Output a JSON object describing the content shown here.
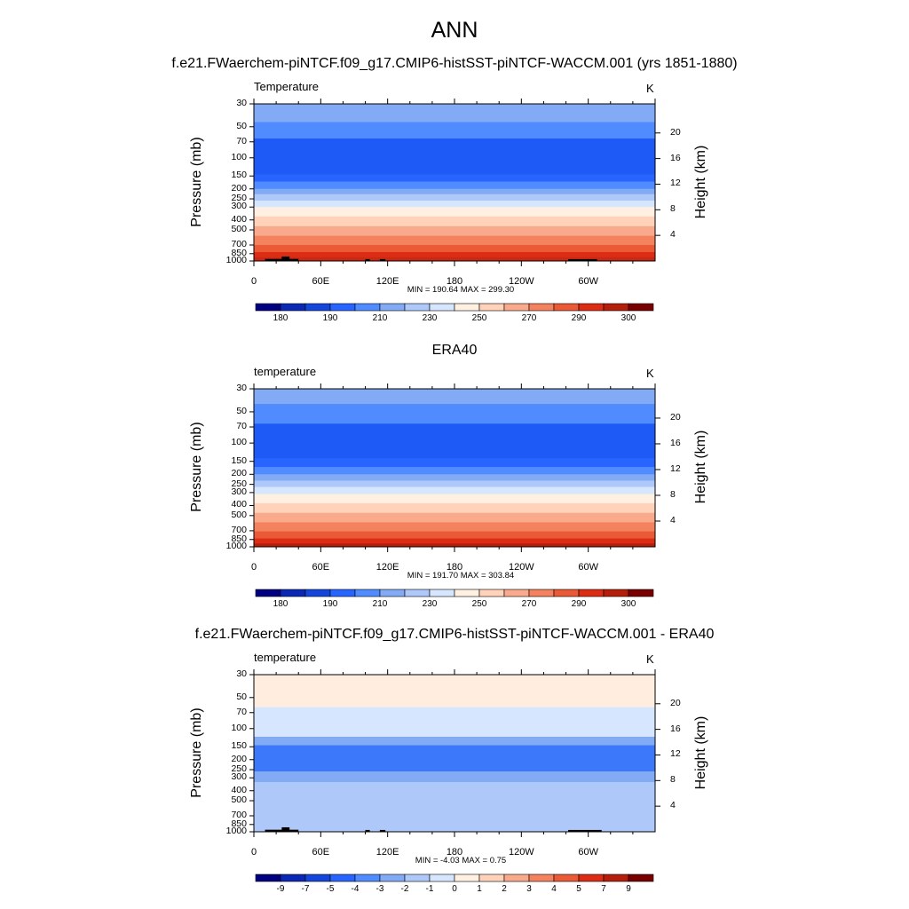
{
  "main_title": "ANN",
  "chart_data": [
    {
      "type": "heatmap",
      "title": "f.e21.FWaerchem-piNTCF.f09_g17.CMIP6-histSST-piNTCF-WACCM.001 (yrs 1851-1880)",
      "variable_label": "Temperature",
      "units": "K",
      "ylabel": "Pressure (mb)",
      "y2label": "Height (km)",
      "x_ticks": [
        "0",
        "60E",
        "120E",
        "180",
        "120W",
        "60W"
      ],
      "p_ticks": [
        "30",
        "50",
        "70",
        "100",
        "150",
        "200",
        "250",
        "300",
        "400",
        "500",
        "700",
        "850",
        "1000"
      ],
      "h_ticks": [
        "20",
        "16",
        "12",
        "8",
        "4"
      ],
      "minmax_text": "MIN = 190.64  MAX = 299.30",
      "min": 190.64,
      "max": 299.3,
      "colorbar_ticks": [
        "180",
        "190",
        "210",
        "230",
        "250",
        "270",
        "290",
        "300"
      ],
      "colorbar_colors": [
        "#000080",
        "#0a28b4",
        "#1446dc",
        "#2864ff",
        "#508cff",
        "#82aaf5",
        "#afc8fa",
        "#d7e6ff",
        "#fff0e1",
        "#ffd2b9",
        "#faaa8c",
        "#f5825f",
        "#eb5a37",
        "#dc2d14",
        "#b41e0a",
        "#780000"
      ],
      "bands": [
        {
          "p_top": 30,
          "p_bot": 45,
          "color": "#82aaf5"
        },
        {
          "p_top": 45,
          "p_bot": 65,
          "color": "#508cff"
        },
        {
          "p_top": 65,
          "p_bot": 145,
          "color": "#1e5af5"
        },
        {
          "p_top": 145,
          "p_bot": 170,
          "color": "#2864ff"
        },
        {
          "p_top": 170,
          "p_bot": 200,
          "color": "#508cff"
        },
        {
          "p_top": 200,
          "p_bot": 225,
          "color": "#82aaf5"
        },
        {
          "p_top": 225,
          "p_bot": 260,
          "color": "#afc8fa"
        },
        {
          "p_top": 260,
          "p_bot": 300,
          "color": "#d7e6ff"
        },
        {
          "p_top": 300,
          "p_bot": 370,
          "color": "#fff0e1"
        },
        {
          "p_top": 370,
          "p_bot": 460,
          "color": "#ffd2b9"
        },
        {
          "p_top": 460,
          "p_bot": 570,
          "color": "#faaa8c"
        },
        {
          "p_top": 570,
          "p_bot": 700,
          "color": "#f5825f"
        },
        {
          "p_top": 700,
          "p_bot": 820,
          "color": "#eb5a37"
        },
        {
          "p_top": 820,
          "p_bot": 920,
          "color": "#dc2d14"
        },
        {
          "p_top": 920,
          "p_bot": 1000,
          "color": "#c82814"
        }
      ],
      "topography": [
        {
          "lon_start": 10,
          "lon_end": 32,
          "p_top": 955
        },
        {
          "lon_start": 25,
          "lon_end": 32,
          "p_top": 905
        },
        {
          "lon_start": 32,
          "lon_end": 40,
          "p_top": 955
        },
        {
          "lon_start": 100,
          "lon_end": 104,
          "p_top": 960
        },
        {
          "lon_start": 113,
          "lon_end": 118,
          "p_top": 960
        },
        {
          "lon_start": 282,
          "lon_end": 308,
          "p_top": 960
        }
      ]
    },
    {
      "type": "heatmap",
      "title": "ERA40",
      "variable_label": "temperature",
      "units": "K",
      "ylabel": "Pressure (mb)",
      "y2label": "Height (km)",
      "x_ticks": [
        "0",
        "60E",
        "120E",
        "180",
        "120W",
        "60W"
      ],
      "p_ticks": [
        "30",
        "50",
        "70",
        "100",
        "150",
        "200",
        "250",
        "300",
        "400",
        "500",
        "700",
        "850",
        "1000"
      ],
      "h_ticks": [
        "20",
        "16",
        "12",
        "8",
        "4"
      ],
      "minmax_text": "MIN = 191.70  MAX = 303.84",
      "min": 191.7,
      "max": 303.84,
      "colorbar_ticks": [
        "180",
        "190",
        "210",
        "230",
        "250",
        "270",
        "290",
        "300"
      ],
      "colorbar_colors": [
        "#000080",
        "#0a28b4",
        "#1446dc",
        "#2864ff",
        "#508cff",
        "#82aaf5",
        "#afc8fa",
        "#d7e6ff",
        "#fff0e1",
        "#ffd2b9",
        "#faaa8c",
        "#f5825f",
        "#eb5a37",
        "#dc2d14",
        "#b41e0a",
        "#780000"
      ],
      "bands": [
        {
          "p_top": 30,
          "p_bot": 42,
          "color": "#82aaf5"
        },
        {
          "p_top": 42,
          "p_bot": 65,
          "color": "#508cff"
        },
        {
          "p_top": 65,
          "p_bot": 140,
          "color": "#1e5af5"
        },
        {
          "p_top": 140,
          "p_bot": 170,
          "color": "#2864ff"
        },
        {
          "p_top": 170,
          "p_bot": 200,
          "color": "#508cff"
        },
        {
          "p_top": 200,
          "p_bot": 230,
          "color": "#82aaf5"
        },
        {
          "p_top": 230,
          "p_bot": 265,
          "color": "#afc8fa"
        },
        {
          "p_top": 265,
          "p_bot": 310,
          "color": "#d7e6ff"
        },
        {
          "p_top": 310,
          "p_bot": 380,
          "color": "#fff0e1"
        },
        {
          "p_top": 380,
          "p_bot": 470,
          "color": "#ffd2b9"
        },
        {
          "p_top": 470,
          "p_bot": 580,
          "color": "#faaa8c"
        },
        {
          "p_top": 580,
          "p_bot": 710,
          "color": "#f5825f"
        },
        {
          "p_top": 710,
          "p_bot": 830,
          "color": "#eb5a37"
        },
        {
          "p_top": 830,
          "p_bot": 930,
          "color": "#dc2d14"
        },
        {
          "p_top": 930,
          "p_bot": 1000,
          "color": "#b41e0a"
        }
      ],
      "topography": []
    },
    {
      "type": "heatmap",
      "title": "f.e21.FWaerchem-piNTCF.f09_g17.CMIP6-histSST-piNTCF-WACCM.001 - ERA40",
      "variable_label": "temperature",
      "units": "K",
      "ylabel": "Pressure (mb)",
      "y2label": "Height (km)",
      "x_ticks": [
        "0",
        "60E",
        "120E",
        "180",
        "120W",
        "60W"
      ],
      "p_ticks": [
        "30",
        "50",
        "70",
        "100",
        "150",
        "200",
        "250",
        "300",
        "400",
        "500",
        "700",
        "850",
        "1000"
      ],
      "h_ticks": [
        "20",
        "16",
        "12",
        "8",
        "4"
      ],
      "minmax_text": "MIN =  -4.03  MAX =   0.75",
      "min": -4.03,
      "max": 0.75,
      "colorbar_ticks": [
        "-9",
        "-7",
        "-5",
        "-4",
        "-3",
        "-2",
        "-1",
        "0",
        "1",
        "2",
        "3",
        "4",
        "5",
        "7",
        "9"
      ],
      "colorbar_colors": [
        "#000080",
        "#0a28b4",
        "#1446dc",
        "#2864ff",
        "#508cff",
        "#82aaf5",
        "#afc8fa",
        "#d7e6ff",
        "#fff0e1",
        "#ffd2b9",
        "#faaa8c",
        "#f5825f",
        "#eb5a37",
        "#dc2d14",
        "#b41e0a",
        "#780000"
      ],
      "bands": [
        {
          "p_top": 30,
          "p_bot": 62,
          "color": "#ffeee0"
        },
        {
          "p_top": 62,
          "p_bot": 120,
          "color": "#d7e6ff"
        },
        {
          "p_top": 120,
          "p_bot": 145,
          "color": "#82aaf5"
        },
        {
          "p_top": 145,
          "p_bot": 260,
          "color": "#3c78fa"
        },
        {
          "p_top": 260,
          "p_bot": 330,
          "color": "#82aaf5"
        },
        {
          "p_top": 330,
          "p_bot": 1000,
          "color": "#afc8fa"
        }
      ],
      "topography": [
        {
          "lon_start": 10,
          "lon_end": 32,
          "p_top": 955
        },
        {
          "lon_start": 25,
          "lon_end": 32,
          "p_top": 905
        },
        {
          "lon_start": 32,
          "lon_end": 40,
          "p_top": 955
        },
        {
          "lon_start": 100,
          "lon_end": 104,
          "p_top": 960
        },
        {
          "lon_start": 113,
          "lon_end": 118,
          "p_top": 960
        },
        {
          "lon_start": 282,
          "lon_end": 312,
          "p_top": 960
        }
      ]
    }
  ]
}
